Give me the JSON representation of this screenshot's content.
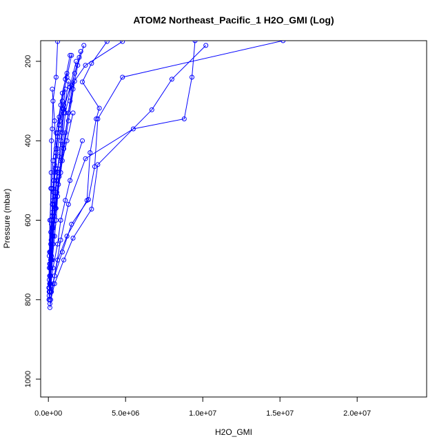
{
  "chart_data": {
    "type": "line",
    "title": "ATOM2 Northeast_Pacific_1 H2O_GMI (Log)",
    "xlabel": "H2O_GMI",
    "ylabel": "Pressure (mbar)",
    "xlim": [
      -500000,
      24500000
    ],
    "ylim": [
      1045,
      148
    ],
    "y_inverted": true,
    "x_ticks": [
      {
        "value": 0,
        "label": "0.0e+00"
      },
      {
        "value": 5000000,
        "label": "5.0e+06"
      },
      {
        "value": 10000000,
        "label": "1.0e+07"
      },
      {
        "value": 15000000,
        "label": "1.5e+07"
      },
      {
        "value": 20000000,
        "label": "2.0e+07"
      }
    ],
    "y_ticks": [
      {
        "value": 200,
        "label": "200"
      },
      {
        "value": 400,
        "label": "400"
      },
      {
        "value": 600,
        "label": "600"
      },
      {
        "value": 800,
        "label": "800"
      },
      {
        "value": 1000,
        "label": "1000"
      }
    ],
    "grid": false,
    "legend": "none",
    "color": "#0000ff",
    "marker": "open-circle",
    "series": [
      {
        "points": [
          [
            9500000,
            148
          ],
          [
            9300000,
            240
          ],
          [
            8800000,
            345
          ],
          [
            5500000,
            370
          ],
          [
            2400000,
            445
          ],
          [
            1300000,
            560
          ],
          [
            800000,
            650
          ],
          [
            300000,
            760
          ],
          [
            100000,
            820
          ]
        ]
      },
      {
        "points": [
          [
            15200000,
            148
          ],
          [
            4800000,
            240
          ],
          [
            3200000,
            345
          ],
          [
            3000000,
            465
          ],
          [
            2600000,
            548
          ],
          [
            1500000,
            610
          ],
          [
            900000,
            680
          ],
          [
            400000,
            740
          ],
          [
            150000,
            800
          ]
        ]
      },
      {
        "points": [
          [
            10200000,
            160
          ],
          [
            8000000,
            245
          ],
          [
            6700000,
            322
          ],
          [
            3200000,
            460
          ],
          [
            2800000,
            572
          ],
          [
            1600000,
            645
          ],
          [
            1000000,
            700
          ],
          [
            400000,
            760
          ],
          [
            100000,
            810
          ]
        ]
      },
      {
        "points": [
          [
            3800000,
            150
          ],
          [
            2800000,
            205
          ],
          [
            2200000,
            252
          ],
          [
            3300000,
            318
          ],
          [
            3100000,
            345
          ],
          [
            2700000,
            430
          ],
          [
            2500000,
            550
          ],
          [
            1200000,
            640
          ],
          [
            600000,
            700
          ],
          [
            200000,
            780
          ]
        ]
      },
      {
        "points": [
          [
            2300000,
            160
          ],
          [
            1900000,
            210
          ],
          [
            1600000,
            270
          ],
          [
            1300000,
            330
          ],
          [
            1000000,
            410
          ],
          [
            700000,
            490
          ],
          [
            450000,
            570
          ],
          [
            300000,
            640
          ],
          [
            150000,
            720
          ],
          [
            50000,
            790
          ]
        ]
      },
      {
        "points": [
          [
            1500000,
            185
          ],
          [
            1200000,
            240
          ],
          [
            900000,
            300
          ],
          [
            700000,
            360
          ],
          [
            500000,
            430
          ],
          [
            350000,
            500
          ],
          [
            250000,
            580
          ],
          [
            150000,
            660
          ],
          [
            80000,
            740
          ],
          [
            40000,
            800
          ]
        ]
      },
      {
        "points": [
          [
            2100000,
            175
          ],
          [
            1700000,
            230
          ],
          [
            1400000,
            300
          ],
          [
            1100000,
            380
          ],
          [
            800000,
            450
          ],
          [
            550000,
            530
          ],
          [
            350000,
            610
          ],
          [
            200000,
            690
          ],
          [
            100000,
            760
          ]
        ]
      },
      {
        "points": [
          [
            1800000,
            200
          ],
          [
            1400000,
            265
          ],
          [
            1000000,
            320
          ],
          [
            800000,
            400
          ],
          [
            600000,
            480
          ],
          [
            400000,
            560
          ],
          [
            250000,
            640
          ],
          [
            120000,
            720
          ],
          [
            60000,
            780
          ]
        ]
      },
      {
        "points": [
          [
            1400000,
            185
          ],
          [
            1100000,
            245
          ],
          [
            800000,
            310
          ],
          [
            500000,
            380
          ],
          [
            300000,
            450
          ],
          [
            200000,
            520
          ],
          [
            100000,
            600
          ],
          [
            60000,
            690
          ],
          [
            30000,
            770
          ]
        ]
      },
      {
        "points": [
          [
            2000000,
            190
          ],
          [
            1500000,
            260
          ],
          [
            1100000,
            330
          ],
          [
            900000,
            410
          ],
          [
            600000,
            470
          ],
          [
            400000,
            540
          ],
          [
            300000,
            620
          ],
          [
            150000,
            700
          ],
          [
            50000,
            780
          ]
        ]
      },
      {
        "points": [
          [
            1200000,
            230
          ],
          [
            900000,
            280
          ],
          [
            700000,
            340
          ],
          [
            600000,
            390
          ],
          [
            400000,
            460
          ],
          [
            300000,
            520
          ],
          [
            200000,
            600
          ],
          [
            100000,
            680
          ],
          [
            60000,
            750
          ]
        ]
      },
      {
        "points": [
          [
            4800000,
            150
          ],
          [
            2400000,
            210
          ],
          [
            1500000,
            260
          ],
          [
            1000000,
            310
          ],
          [
            700000,
            360
          ],
          [
            500000,
            420
          ],
          [
            400000,
            480
          ],
          [
            300000,
            560
          ],
          [
            150000,
            630
          ],
          [
            80000,
            710
          ]
        ]
      },
      {
        "points": [
          [
            2200000,
            400
          ],
          [
            1400000,
            500
          ],
          [
            1100000,
            550
          ],
          [
            800000,
            600
          ],
          [
            600000,
            660
          ],
          [
            300000,
            720
          ],
          [
            100000,
            780
          ]
        ]
      },
      {
        "points": [
          [
            1600000,
            330
          ],
          [
            1200000,
            400
          ],
          [
            900000,
            450
          ],
          [
            650000,
            510
          ],
          [
            500000,
            570
          ],
          [
            300000,
            640
          ],
          [
            150000,
            700
          ],
          [
            80000,
            760
          ]
        ]
      },
      {
        "points": [
          [
            250000,
            270
          ],
          [
            400000,
            350
          ],
          [
            500000,
            420
          ],
          [
            400000,
            480
          ],
          [
            300000,
            550
          ],
          [
            250000,
            620
          ],
          [
            200000,
            700
          ],
          [
            100000,
            760
          ]
        ]
      },
      {
        "points": [
          [
            600000,
            150
          ],
          [
            500000,
            240
          ],
          [
            300000,
            300
          ],
          [
            250000,
            370
          ],
          [
            200000,
            400
          ],
          [
            180000,
            480
          ],
          [
            160000,
            520
          ],
          [
            120000,
            600
          ],
          [
            80000,
            680
          ],
          [
            60000,
            720
          ]
        ]
      },
      {
        "points": [
          [
            1300000,
            250
          ],
          [
            1000000,
            330
          ],
          [
            900000,
            380
          ],
          [
            700000,
            440
          ],
          [
            500000,
            500
          ],
          [
            450000,
            540
          ],
          [
            400000,
            590
          ],
          [
            300000,
            660
          ],
          [
            150000,
            740
          ],
          [
            80000,
            800
          ]
        ]
      },
      {
        "points": [
          [
            1700000,
            250
          ],
          [
            1300000,
            350
          ],
          [
            1000000,
            420
          ],
          [
            800000,
            480
          ],
          [
            600000,
            540
          ],
          [
            500000,
            600
          ],
          [
            400000,
            640
          ],
          [
            250000,
            700
          ],
          [
            120000,
            760
          ]
        ]
      },
      {
        "points": [
          [
            900000,
            300
          ],
          [
            750000,
            350
          ],
          [
            600000,
            380
          ],
          [
            450000,
            440
          ],
          [
            350000,
            500
          ],
          [
            250000,
            560
          ],
          [
            200000,
            610
          ],
          [
            150000,
            680
          ],
          [
            100000,
            740
          ]
        ]
      },
      {
        "points": [
          [
            1100000,
            270
          ],
          [
            950000,
            320
          ],
          [
            800000,
            370
          ],
          [
            600000,
            420
          ],
          [
            450000,
            470
          ],
          [
            350000,
            530
          ],
          [
            250000,
            590
          ],
          [
            180000,
            650
          ],
          [
            120000,
            710
          ],
          [
            70000,
            770
          ]
        ]
      }
    ]
  }
}
